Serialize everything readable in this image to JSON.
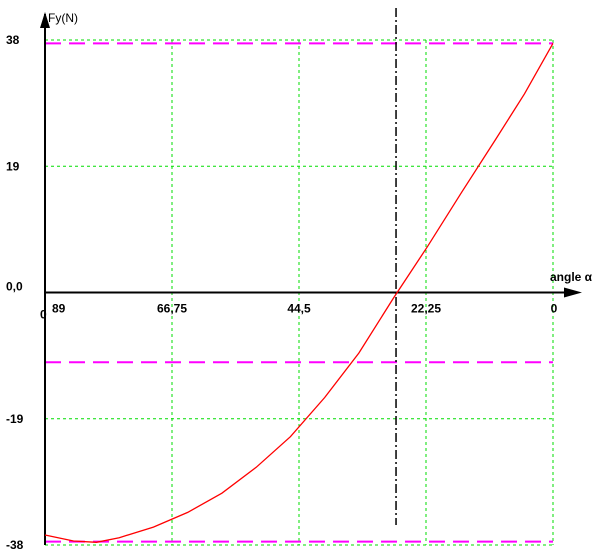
{
  "chart_data": {
    "type": "line",
    "ylabel": "Fy(N)",
    "xlabel": "angle α",
    "x_axis_reversed": true,
    "xlim": [
      89,
      0
    ],
    "ylim": [
      -38,
      38
    ],
    "origin_label": "0",
    "x_ticks": [
      {
        "value": 89,
        "label": "89"
      },
      {
        "value": 66.75,
        "label": "66,75"
      },
      {
        "value": 44.5,
        "label": "44,5"
      },
      {
        "value": 22.25,
        "label": "22,25"
      },
      {
        "value": 0,
        "label": "0"
      }
    ],
    "y_ticks": [
      {
        "value": 38,
        "label": "38"
      },
      {
        "value": 19,
        "label": "19"
      },
      {
        "value": 0,
        "label": "0,0"
      },
      {
        "value": -19,
        "label": "-19"
      },
      {
        "value": -38,
        "label": "-38"
      }
    ],
    "grid": true,
    "limit_lines_y": [
      37.5,
      -10.5,
      -37.5
    ],
    "marker_line_x": 27.5,
    "series": [
      {
        "color": "#ff0000",
        "x": [
          89,
          84,
          80,
          76,
          70,
          64,
          58,
          52,
          46,
          40,
          34,
          28,
          22,
          16,
          10,
          5,
          0
        ],
        "y": [
          -36.5,
          -37.4,
          -37.6,
          -36.9,
          -35.3,
          -33.1,
          -30.2,
          -26.3,
          -21.7,
          -15.8,
          -9.1,
          -0.9,
          6.9,
          15.1,
          23.1,
          29.9,
          37.5
        ]
      }
    ],
    "colors": {
      "grid": "#00dd00",
      "limit": "#ff00ff",
      "curve": "#ff0000",
      "axis": "#000000",
      "marker": "#000000"
    }
  }
}
